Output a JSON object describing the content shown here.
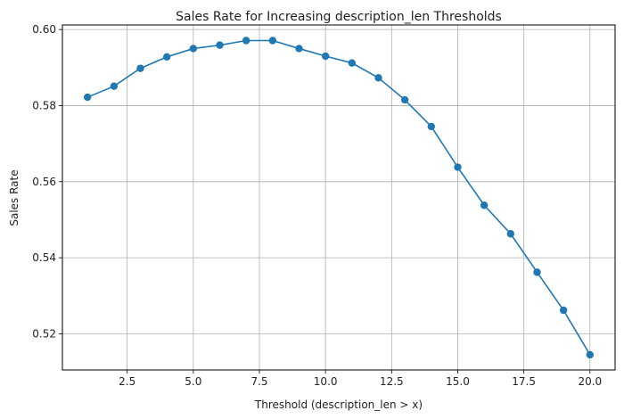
{
  "chart_data": {
    "type": "line",
    "title": "Sales Rate for Increasing description_len Thresholds",
    "xlabel": "Threshold  (description_len > x)",
    "ylabel": "Sales Rate",
    "xlim": [
      0.05,
      20.95
    ],
    "ylim": [
      0.5105,
      0.6012
    ],
    "x_ticks": [
      2.5,
      5.0,
      7.5,
      10.0,
      12.5,
      15.0,
      17.5,
      20.0
    ],
    "y_ticks": [
      0.52,
      0.54,
      0.56,
      0.58,
      0.6
    ],
    "grid": true,
    "series": [
      {
        "color": "#1f77b4",
        "marker": "circle",
        "x": [
          1,
          2,
          3,
          4,
          5,
          6,
          7,
          8,
          9,
          10,
          11,
          12,
          13,
          14,
          15,
          16,
          17,
          18,
          19,
          20
        ],
        "y": [
          0.5822,
          0.5851,
          0.5898,
          0.5928,
          0.595,
          0.5959,
          0.5971,
          0.5971,
          0.595,
          0.593,
          0.5912,
          0.5873,
          0.5815,
          0.5745,
          0.5638,
          0.5538,
          0.5463,
          0.5362,
          0.5262,
          0.5145
        ]
      }
    ]
  }
}
